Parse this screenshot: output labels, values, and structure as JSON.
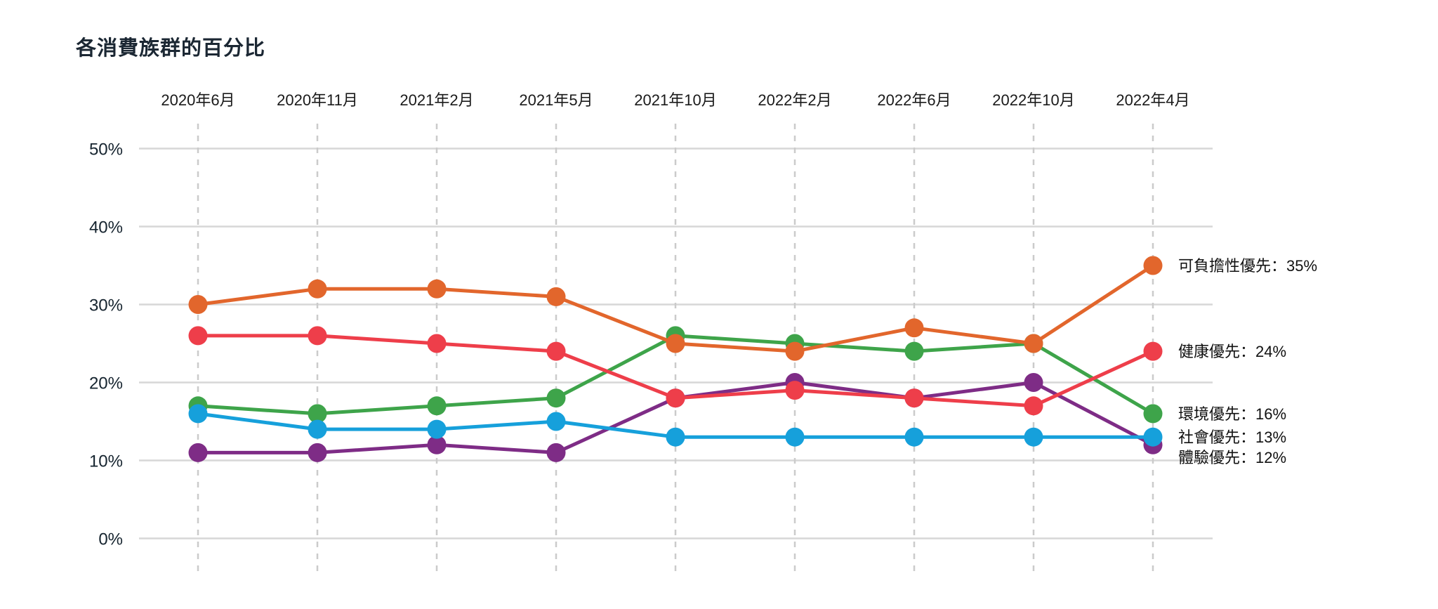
{
  "title": "各消費族群的百分比",
  "chart_data": {
    "type": "line",
    "title": "各消費族群的百分比",
    "categories": [
      "2020年6月",
      "2020年11月",
      "2021年2月",
      "2021年5月",
      "2021年10月",
      "2022年2月",
      "2022年6月",
      "2022年10月",
      "2022年4月"
    ],
    "series": [
      {
        "key": "affordability",
        "name": "可負擔性優先",
        "color": "#e2662c",
        "values": [
          30,
          32,
          32,
          31,
          25,
          24,
          27,
          25,
          35
        ],
        "end_label": "可負擔性優先：35%"
      },
      {
        "key": "health",
        "name": "健康優先",
        "color": "#ee3e4a",
        "values": [
          26,
          26,
          25,
          24,
          18,
          19,
          18,
          17,
          24
        ],
        "end_label": "健康優先：24%"
      },
      {
        "key": "environment",
        "name": "環境優先",
        "color": "#3ea44a",
        "values": [
          17,
          16,
          17,
          18,
          26,
          25,
          24,
          25,
          16
        ],
        "end_label": "環境優先：16%"
      },
      {
        "key": "social",
        "name": "社會優先",
        "color": "#16a0db",
        "values": [
          16,
          14,
          14,
          15,
          13,
          13,
          13,
          13,
          13
        ],
        "end_label": "社會優先：13%"
      },
      {
        "key": "experience",
        "name": "體驗優先",
        "color": "#7e2c86",
        "values": [
          11,
          11,
          12,
          11,
          18,
          20,
          18,
          20,
          12
        ],
        "end_label": "體驗優先：12%"
      }
    ],
    "draw_order": [
      "environment",
      "affordability",
      "experience",
      "health",
      "social"
    ],
    "y_ticks": [
      {
        "label": "50%",
        "value": 50
      },
      {
        "label": "40%",
        "value": 40
      },
      {
        "label": "30%",
        "value": 30
      },
      {
        "label": "20%",
        "value": 20
      },
      {
        "label": "10%",
        "value": 10
      },
      {
        "label": "0%",
        "value": 0
      }
    ],
    "ylim": [
      0,
      55
    ],
    "xlabel": "",
    "ylabel": "",
    "grid": {
      "horizontal": "solid",
      "vertical": "dashed"
    },
    "legend_position": "right-end-labels",
    "colors": {
      "h_gridline": "#d7d7d7",
      "v_gridline": "#cbcbcb",
      "x_tick_text": "#1a1a1a",
      "y_tick_text": "#16242f",
      "end_label_text": "#111111",
      "background": "#ffffff"
    }
  }
}
